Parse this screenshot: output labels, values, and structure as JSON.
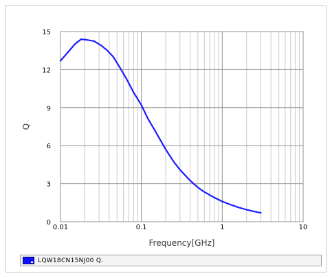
{
  "colors": {
    "series": "#1a1aff",
    "grid_major": "#909090",
    "grid_minor": "#c8c8c8",
    "frame": "#c8c8c8",
    "legend_bg": "#f4f4f4"
  },
  "chart_data": {
    "type": "line",
    "title": "",
    "xlabel": "Frequency[GHz]",
    "ylabel": "Q",
    "xscale": "log",
    "xlim": [
      0.01,
      10
    ],
    "ylim": [
      0,
      15
    ],
    "x_ticks": [
      {
        "value": 0.01,
        "label": "0.01"
      },
      {
        "value": 0.1,
        "label": "0.1"
      },
      {
        "value": 1,
        "label": "1"
      },
      {
        "value": 10,
        "label": "10"
      }
    ],
    "y_ticks": [
      {
        "value": 0,
        "label": "0"
      },
      {
        "value": 3,
        "label": "3"
      },
      {
        "value": 6,
        "label": "6"
      },
      {
        "value": 9,
        "label": "9"
      },
      {
        "value": 12,
        "label": "12"
      },
      {
        "value": 15,
        "label": "15"
      }
    ],
    "grid": true,
    "legend_position": "bottom",
    "series": [
      {
        "name": "LQW18CN15NJ00 Q.",
        "x": [
          0.01,
          0.0125,
          0.015,
          0.018,
          0.021,
          0.026,
          0.032,
          0.038,
          0.045,
          0.055,
          0.065,
          0.08,
          0.1,
          0.12,
          0.15,
          0.2,
          0.25,
          0.3,
          0.4,
          0.5,
          0.6,
          0.8,
          1.0,
          1.3,
          1.6,
          2.0,
          2.5,
          3.0
        ],
        "values": [
          12.7,
          13.4,
          14.0,
          14.4,
          14.35,
          14.25,
          13.9,
          13.5,
          13.0,
          12.1,
          11.3,
          10.2,
          9.2,
          8.15,
          7.1,
          5.7,
          4.75,
          4.1,
          3.25,
          2.7,
          2.35,
          1.9,
          1.6,
          1.32,
          1.12,
          0.95,
          0.8,
          0.7
        ]
      }
    ]
  }
}
